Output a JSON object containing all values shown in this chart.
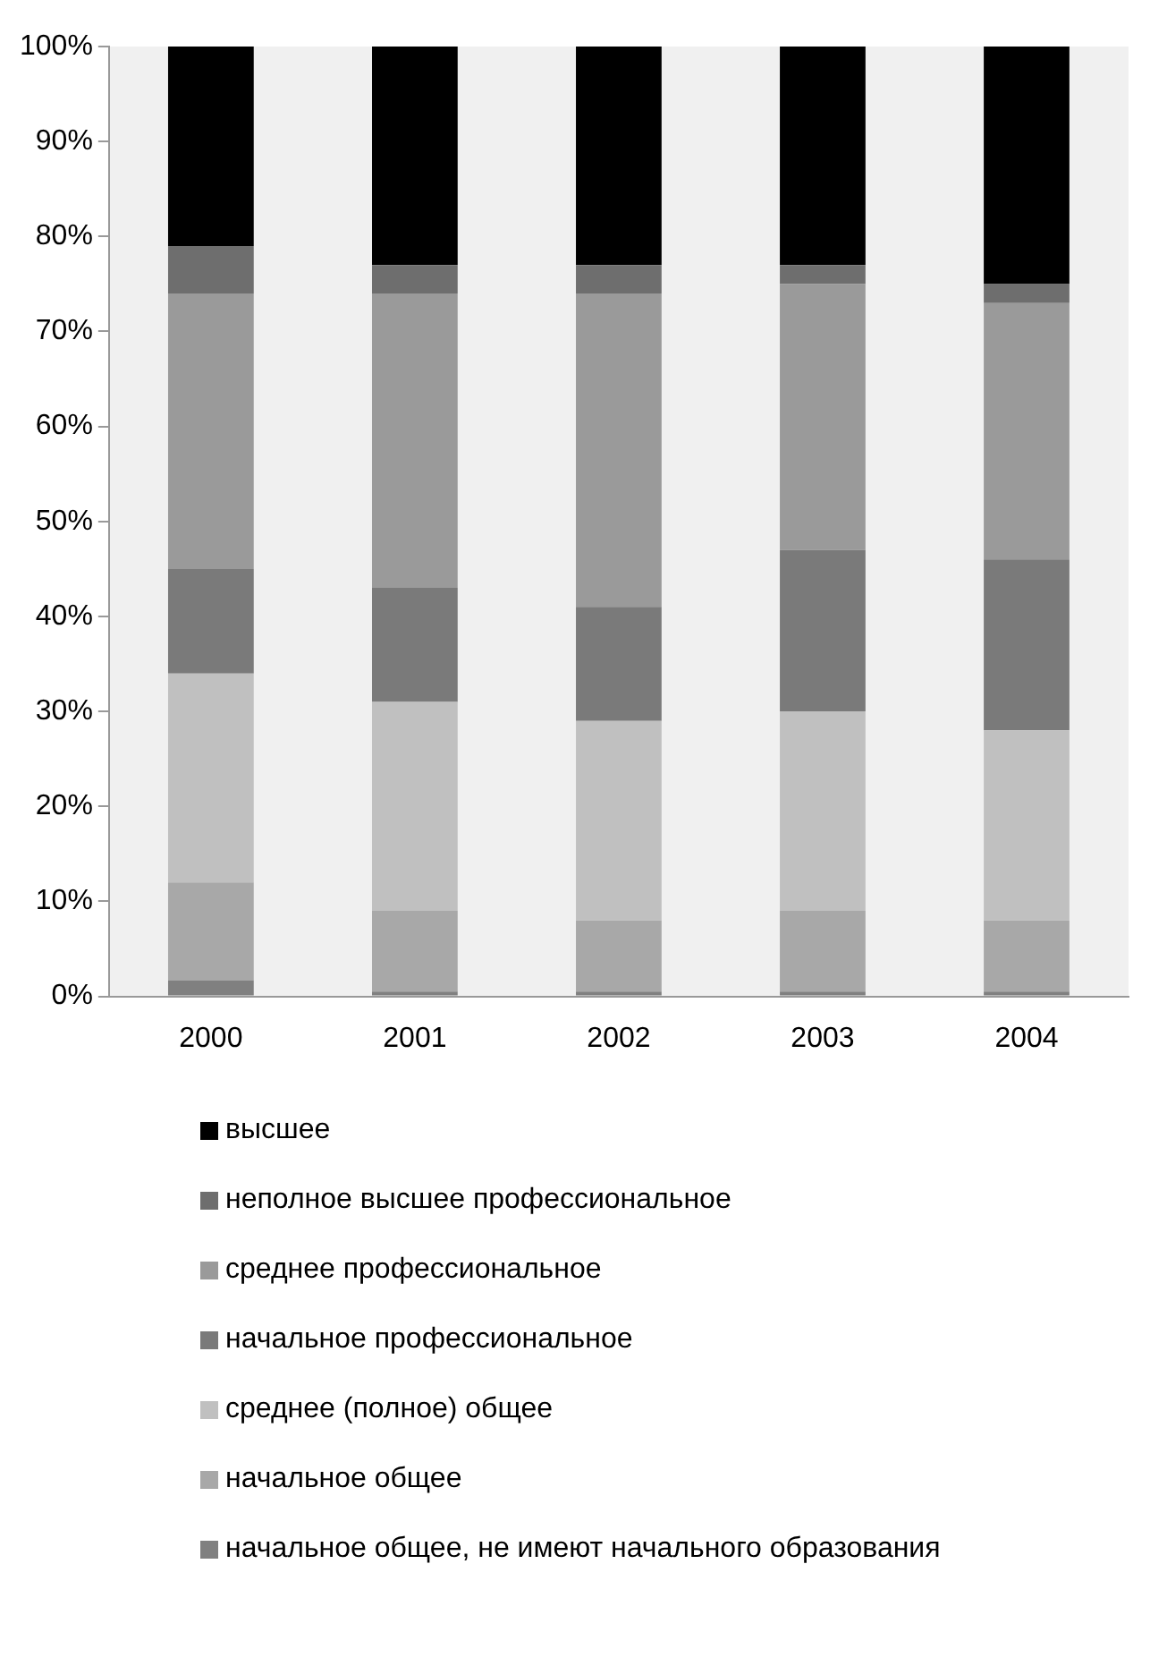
{
  "chart_data": {
    "type": "bar",
    "stacked": true,
    "categories": [
      "2000",
      "2001",
      "2002",
      "2003",
      "2004"
    ],
    "series": [
      {
        "name": "начальное общее, не имеют начального образования",
        "color": "#808080",
        "values": [
          1.7,
          0.5,
          0.5,
          0.5,
          0.5
        ]
      },
      {
        "name": "начальное общее",
        "color": "#a8a8a8",
        "values": [
          10.3,
          8.5,
          7.5,
          8.5,
          7.5
        ]
      },
      {
        "name": "среднее (полное) общее",
        "color": "#c0c0c0",
        "values": [
          22,
          22,
          21,
          21,
          20
        ]
      },
      {
        "name": "начальное профессиональное",
        "color": "#7a7a7a",
        "values": [
          11,
          12,
          12,
          17,
          18
        ]
      },
      {
        "name": "среднее профессиональное",
        "color": "#9a9a9a",
        "values": [
          29,
          31,
          33,
          28,
          27
        ]
      },
      {
        "name": "неполное высшее профессиональное",
        "color": "#6e6e6e",
        "values": [
          5,
          3,
          3,
          2,
          2
        ]
      },
      {
        "name": "высшее",
        "color": "#000000",
        "values": [
          21,
          23,
          23,
          23,
          25
        ]
      }
    ],
    "ylim": [
      0,
      100
    ],
    "yticks": [
      {
        "value": 0,
        "label": "0%"
      },
      {
        "value": 10,
        "label": "10%"
      },
      {
        "value": 20,
        "label": "20%"
      },
      {
        "value": 30,
        "label": "30%"
      },
      {
        "value": 40,
        "label": "40%"
      },
      {
        "value": 50,
        "label": "50%"
      },
      {
        "value": 60,
        "label": "60%"
      },
      {
        "value": 70,
        "label": "70%"
      },
      {
        "value": 80,
        "label": "80%"
      },
      {
        "value": 90,
        "label": "90%"
      },
      {
        "value": 100,
        "label": "100%"
      }
    ],
    "grid": false,
    "legend": "bottom"
  }
}
